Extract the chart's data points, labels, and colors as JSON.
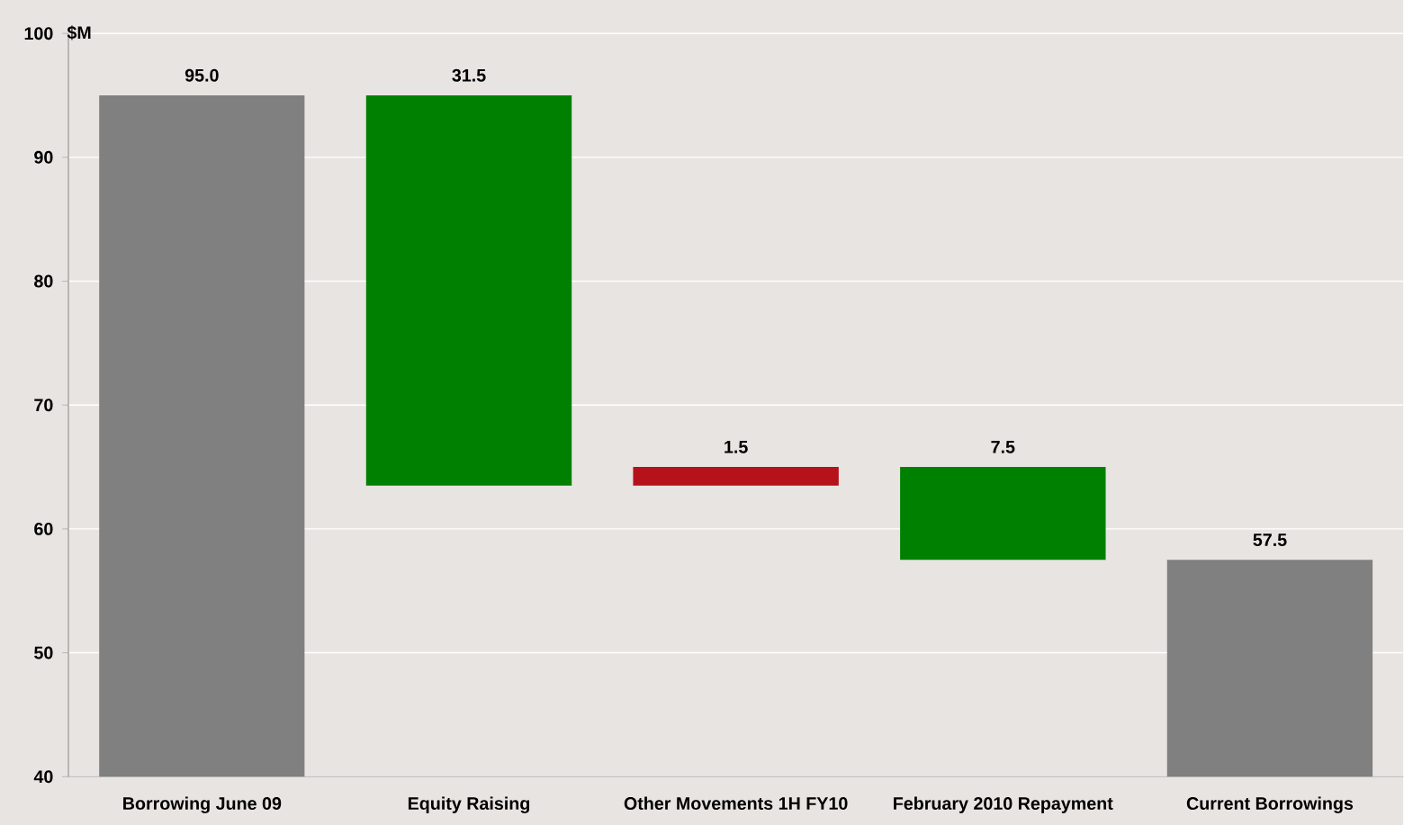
{
  "chart_data": {
    "type": "bar",
    "ylabel": "$M",
    "categories": [
      "Borrowing June 09",
      "Equity Raising",
      "Other Movements 1H FY10",
      "February 2010 Repayment",
      "Current Borrowings"
    ],
    "values": [
      95.0,
      31.5,
      1.5,
      7.5,
      57.5
    ],
    "base": [
      0,
      63.5,
      63.5,
      57.5,
      0
    ],
    "colors": [
      "#808080",
      "#008000",
      "#b5121b",
      "#008000",
      "#808080"
    ],
    "ylim": [
      40,
      100
    ],
    "yticks": [
      40,
      50,
      60,
      70,
      80,
      90,
      100
    ],
    "value_labels": [
      "95.0",
      "31.5",
      "1.5",
      "7.5",
      "57.5"
    ],
    "grid": "y"
  }
}
